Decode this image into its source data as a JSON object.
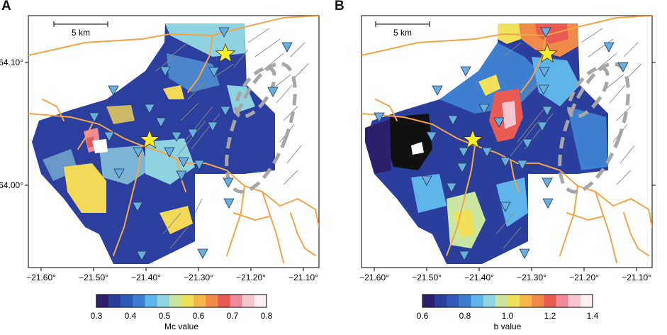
{
  "panels": [
    {
      "letter": "A",
      "scale_bar_label": "5 km",
      "lat_labels": [
        "64.10°",
        "64.00°"
      ],
      "lon_labels": [
        "−21.60°",
        "−21.50°",
        "−21.40°",
        "−21.30°",
        "−21.20°",
        "−21.10°"
      ],
      "colorbar": {
        "label": "Mc value",
        "ticks": [
          "0.3",
          "0.4",
          "0.5",
          "0.6",
          "0.7",
          "0.8"
        ],
        "colors": [
          "#2b1f6e",
          "#2c3e9c",
          "#2f5cb8",
          "#3f7fd0",
          "#5fb4ea",
          "#8fd6e0",
          "#c9e7a0",
          "#f0e05a",
          "#f6b64a",
          "#f08a4a",
          "#e85a52",
          "#ee8a9a",
          "#f6c6cf",
          "#fdf0f3"
        ]
      }
    },
    {
      "letter": "B",
      "scale_bar_label": "5 km",
      "lat_labels": [
        "64.10°",
        "64.00°"
      ],
      "lon_labels": [
        "−21.60°",
        "−21.50°",
        "−21.40°",
        "−21.30°",
        "−21.20°",
        "−21.10°"
      ],
      "colorbar": {
        "label": "b value",
        "ticks": [
          "0.6",
          "0.8",
          "1.0",
          "1.2",
          "1.4"
        ],
        "colors": [
          "#2b1f6e",
          "#2c3e9c",
          "#2f5cb8",
          "#3f7fd0",
          "#5fb4ea",
          "#8fd6e0",
          "#c9e7a0",
          "#f0e05a",
          "#f6b64a",
          "#f08a4a",
          "#e85a52",
          "#ee8a9a",
          "#f6c6cf",
          "#fdf0f3"
        ]
      }
    }
  ],
  "legend_symbols": {
    "station": "inverted-triangle-blue",
    "mainshock": "yellow-star",
    "caldera": "gray-dashed-ellipse"
  },
  "colors": {
    "roads": "#f2a54a",
    "faults": "#8a8a8a",
    "stations": "#6aaedf",
    "star": "#f7ee2e",
    "ellipse": "#9a9a9a"
  }
}
